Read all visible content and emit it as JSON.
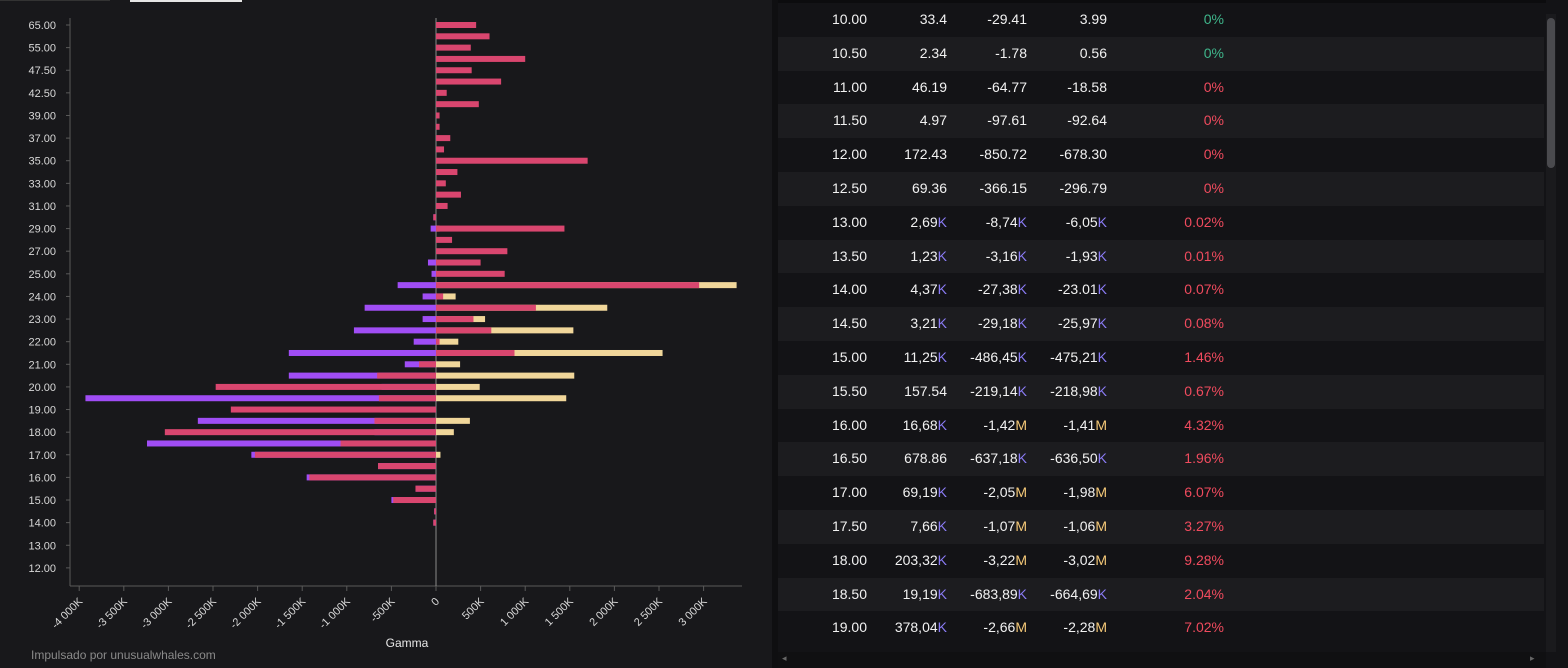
{
  "footer": {
    "credit": "Impulsado por unusualwhales.com"
  },
  "colors": {
    "call_bar": "#d9466f",
    "put_bar": "#a04df5",
    "net_bar": "#f0d69a",
    "suffix_k": "#8b7cf6",
    "suffix_m": "#f5c978",
    "positive_pct": "#3fb68b",
    "negative_pct": "#f04b5e"
  },
  "chart_data": {
    "type": "bar",
    "orientation": "horizontal",
    "xlabel": "Gamma",
    "ylabel": "",
    "xlim": [
      -4000,
      3400
    ],
    "x_ticks": [
      "-4 000K",
      "-3 500K",
      "-3 000K",
      "-2 500K",
      "-2 000K",
      "-1 500K",
      "-1 000K",
      "-500K",
      "0",
      "500K",
      "1 000K",
      "1 500K",
      "2 000K",
      "2 500K",
      "3 000K"
    ],
    "x_tick_values": [
      -4000,
      -3500,
      -3000,
      -2500,
      -2000,
      -1500,
      -1000,
      -500,
      0,
      500,
      1000,
      1500,
      2000,
      2500,
      3000
    ],
    "y_ticks": [
      "65.00",
      "55.00",
      "47.50",
      "42.50",
      "39.00",
      "37.00",
      "35.00",
      "33.00",
      "31.00",
      "29.00",
      "27.00",
      "25.00",
      "24.00",
      "23.00",
      "22.00",
      "21.00",
      "20.00",
      "19.00",
      "18.00",
      "17.00",
      "16.00",
      "15.00",
      "14.00",
      "13.00",
      "12.00"
    ],
    "categories": [
      "65.00",
      "60.00",
      "55.00",
      "50.00",
      "47.50",
      "45.00",
      "42.50",
      "40.00",
      "39.00",
      "38.00",
      "37.00",
      "36.00",
      "35.00",
      "34.00",
      "33.00",
      "32.00",
      "31.00",
      "30.00",
      "29.00",
      "28.00",
      "27.00",
      "26.00",
      "25.00",
      "24.50",
      "24.00",
      "23.50",
      "23.00",
      "22.50",
      "22.00",
      "21.50",
      "21.00",
      "20.50",
      "20.00",
      "19.50",
      "19.00",
      "18.50",
      "18.00",
      "17.50",
      "17.00",
      "16.50",
      "16.00",
      "15.50",
      "15.00",
      "14.50",
      "14.00",
      "13.50",
      "13.00",
      "12.50",
      "12.00"
    ],
    "series": [
      {
        "values": [
          450,
          600,
          390,
          1000,
          400,
          730,
          120,
          480,
          40,
          40,
          160,
          90,
          1700,
          240,
          110,
          280,
          130,
          -30,
          1440,
          180,
          800,
          500,
          770,
          2950,
          80,
          1120,
          420,
          620,
          40,
          880,
          -190,
          -660,
          -2470,
          -640,
          -2300,
          -690,
          -3040,
          -1070,
          -2030,
          -650,
          -1420,
          -230,
          -480,
          -20,
          -30,
          0,
          0,
          0,
          0
        ]
      },
      {
        "values": [
          0,
          0,
          0,
          0,
          0,
          0,
          0,
          0,
          0,
          0,
          0,
          0,
          0,
          0,
          0,
          0,
          0,
          -30,
          -60,
          0,
          0,
          -90,
          -50,
          -430,
          -150,
          -800,
          -150,
          -920,
          -250,
          -1650,
          -350,
          -1650,
          -610,
          -3930,
          -630,
          -2670,
          -690,
          -3240,
          -2070,
          -650,
          -1450,
          -230,
          -500,
          -20,
          -30,
          0,
          0,
          0,
          0
        ]
      },
      {
        "values": [
          0,
          0,
          0,
          0,
          0,
          0,
          0,
          0,
          0,
          0,
          0,
          0,
          0,
          0,
          0,
          0,
          0,
          0,
          40,
          0,
          0,
          0,
          0,
          3370,
          220,
          1920,
          550,
          1540,
          250,
          2540,
          270,
          1550,
          490,
          1460,
          0,
          380,
          200,
          0,
          50,
          0,
          0,
          0,
          0,
          0,
          0,
          0,
          0,
          0,
          0
        ]
      }
    ]
  },
  "table": {
    "rows": [
      {
        "strike": "10.00",
        "c1": "33.4",
        "c1s": "",
        "c2": "-29.41",
        "c2s": "",
        "c3": "3.99",
        "c3s": "",
        "pct": "0%",
        "pct_color": "green"
      },
      {
        "strike": "10.50",
        "c1": "2.34",
        "c1s": "",
        "c2": "-1.78",
        "c2s": "",
        "c3": "0.56",
        "c3s": "",
        "pct": "0%",
        "pct_color": "green"
      },
      {
        "strike": "11.00",
        "c1": "46.19",
        "c1s": "",
        "c2": "-64.77",
        "c2s": "",
        "c3": "-18.58",
        "c3s": "",
        "pct": "0%",
        "pct_color": "red"
      },
      {
        "strike": "11.50",
        "c1": "4.97",
        "c1s": "",
        "c2": "-97.61",
        "c2s": "",
        "c3": "-92.64",
        "c3s": "",
        "pct": "0%",
        "pct_color": "red"
      },
      {
        "strike": "12.00",
        "c1": "172.43",
        "c1s": "",
        "c2": "-850.72",
        "c2s": "",
        "c3": "-678.30",
        "c3s": "",
        "pct": "0%",
        "pct_color": "red"
      },
      {
        "strike": "12.50",
        "c1": "69.36",
        "c1s": "",
        "c2": "-366.15",
        "c2s": "",
        "c3": "-296.79",
        "c3s": "",
        "pct": "0%",
        "pct_color": "red"
      },
      {
        "strike": "13.00",
        "c1": "2,69",
        "c1s": "K",
        "c2": "-8,74",
        "c2s": "K",
        "c3": "-6,05",
        "c3s": "K",
        "pct": "0.02%",
        "pct_color": "red"
      },
      {
        "strike": "13.50",
        "c1": "1,23",
        "c1s": "K",
        "c2": "-3,16",
        "c2s": "K",
        "c3": "-1,93",
        "c3s": "K",
        "pct": "0.01%",
        "pct_color": "red"
      },
      {
        "strike": "14.00",
        "c1": "4,37",
        "c1s": "K",
        "c2": "-27,38",
        "c2s": "K",
        "c3": "-23.01",
        "c3s": "K",
        "pct": "0.07%",
        "pct_color": "red"
      },
      {
        "strike": "14.50",
        "c1": "3,21",
        "c1s": "K",
        "c2": "-29,18",
        "c2s": "K",
        "c3": "-25,97",
        "c3s": "K",
        "pct": "0.08%",
        "pct_color": "red"
      },
      {
        "strike": "15.00",
        "c1": "11,25",
        "c1s": "K",
        "c2": "-486,45",
        "c2s": "K",
        "c3": "-475,21",
        "c3s": "K",
        "pct": "1.46%",
        "pct_color": "red"
      },
      {
        "strike": "15.50",
        "c1": "157.54",
        "c1s": "",
        "c2": "-219,14",
        "c2s": "K",
        "c3": "-218,98",
        "c3s": "K",
        "pct": "0.67%",
        "pct_color": "red"
      },
      {
        "strike": "16.00",
        "c1": "16,68",
        "c1s": "K",
        "c2": "-1,42",
        "c2s": "M",
        "c3": "-1,41",
        "c3s": "M",
        "pct": "4.32%",
        "pct_color": "red"
      },
      {
        "strike": "16.50",
        "c1": "678.86",
        "c1s": "",
        "c2": "-637,18",
        "c2s": "K",
        "c3": "-636,50",
        "c3s": "K",
        "pct": "1.96%",
        "pct_color": "red"
      },
      {
        "strike": "17.00",
        "c1": "69,19",
        "c1s": "K",
        "c2": "-2,05",
        "c2s": "M",
        "c3": "-1,98",
        "c3s": "M",
        "pct": "6.07%",
        "pct_color": "red"
      },
      {
        "strike": "17.50",
        "c1": "7,66",
        "c1s": "K",
        "c2": "-1,07",
        "c2s": "M",
        "c3": "-1,06",
        "c3s": "M",
        "pct": "3.27%",
        "pct_color": "red"
      },
      {
        "strike": "18.00",
        "c1": "203,32",
        "c1s": "K",
        "c2": "-3,22",
        "c2s": "M",
        "c3": "-3,02",
        "c3s": "M",
        "pct": "9.28%",
        "pct_color": "red"
      },
      {
        "strike": "18.50",
        "c1": "19,19",
        "c1s": "K",
        "c2": "-683,89",
        "c2s": "K",
        "c3": "-664,69",
        "c3s": "K",
        "pct": "2.04%",
        "pct_color": "red"
      },
      {
        "strike": "19.00",
        "c1": "378,04",
        "c1s": "K",
        "c2": "-2,66",
        "c2s": "M",
        "c3": "-2,28",
        "c3s": "M",
        "pct": "7.02%",
        "pct_color": "red"
      }
    ]
  },
  "scroll": {
    "left_arrow": "◂",
    "right_arrow": "▸"
  }
}
